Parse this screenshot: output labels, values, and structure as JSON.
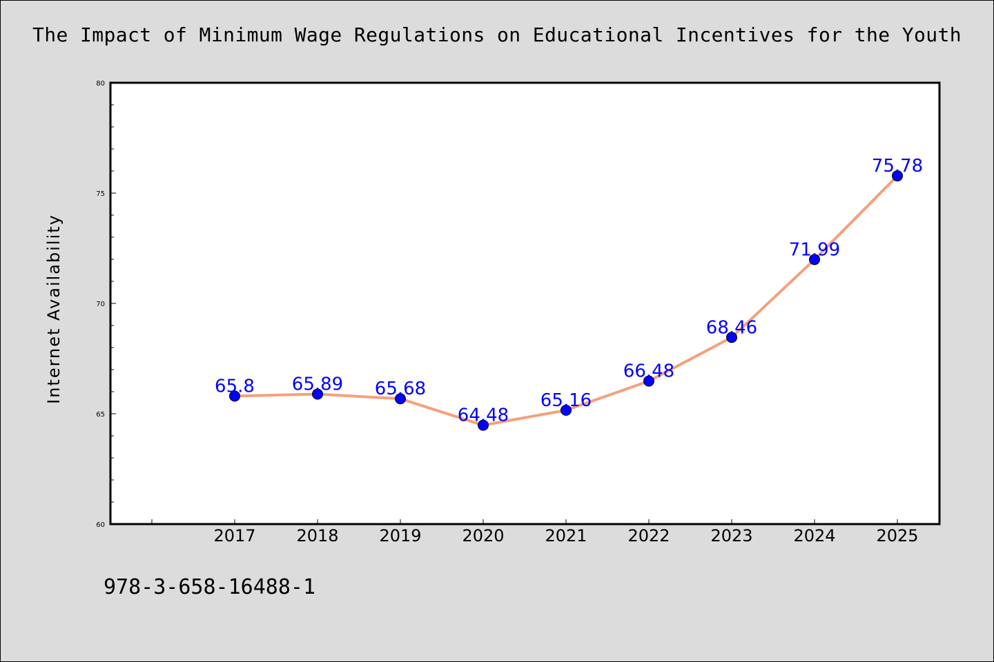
{
  "title": "The Impact of Minimum Wage Regulations on Educational Incentives for the Youth",
  "footer_code": "978-3-658-16488-1",
  "chart_data": {
    "type": "line",
    "title": "The Impact of Minimum Wage Regulations on Educational Incentives for the Youth",
    "xlabel": "",
    "ylabel": "Internet Availability",
    "x": [
      "2017",
      "2018",
      "2019",
      "2020",
      "2021",
      "2022",
      "2023",
      "2024",
      "2025"
    ],
    "series": [
      {
        "values": [
          65.8,
          65.89,
          65.68,
          64.48,
          65.16,
          66.48,
          68.46,
          71.99,
          75.78
        ]
      }
    ],
    "data_labels": [
      "65.8",
      "65.89",
      "65.68",
      "64.48",
      "65.16",
      "66.48",
      "68.46",
      "71.99",
      "75.78"
    ],
    "ylim": [
      60,
      80
    ],
    "yticks": [
      "60",
      "65",
      "70",
      "75",
      "80"
    ],
    "grid": false,
    "colors": {
      "line": "#f4a07c",
      "marker": "#0000ff",
      "label": "#0000ff",
      "background": "#dcdcdc",
      "plot_background": "#ffffff"
    }
  }
}
